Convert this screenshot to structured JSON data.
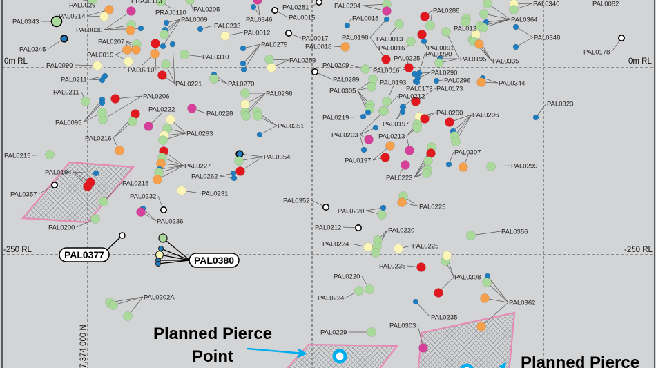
{
  "axes": {
    "rl_0_left": "0m RL",
    "rl_0_right": "0m RL",
    "rl_250_left": "-250 RL",
    "rl_250_right": "-250 RL",
    "northing": "7,374,000 N"
  },
  "callouts": {
    "planned_pierce_line1": "Planned Pierce",
    "planned_pierce_line2": "Point",
    "planned_pierce_right": "Planned Pierce",
    "highlight_hole_1": "PAL0377",
    "highlight_hole_2": "PAL0380"
  },
  "colors": {
    "background": "#d3d4d6",
    "green": "#a9d99b",
    "blue": "#1f7cbf",
    "red": "#e1191f",
    "orange": "#f7a04b",
    "yellow": "#fbf6b8",
    "magenta": "#d6409b",
    "open": "#ffffff",
    "target_outline": "#e68ab6",
    "pierce_point": "#00aeef"
  },
  "drill_hole_labels": [
    "PAL0029",
    "PRAJ0113",
    "PAL0214",
    "PAL0343",
    "PAL0030",
    "PAL0345",
    "PAL0207",
    "PAL0019",
    "PAL0090",
    "PAL0210",
    "PRAJ0110",
    "PAL0205",
    "PAL0009",
    "PAL0233",
    "PAL0012",
    "PAL0221",
    "PAL0310",
    "PAL0279",
    "PAL0283",
    "PAL0270",
    "PAL0211",
    "PAL0211",
    "PAL0206",
    "PAL0095",
    "PAL0222",
    "PAL0228",
    "PAL0216",
    "PAL0293",
    "PAL0298",
    "PAL0351",
    "PAL0215",
    "PAL0227",
    "PAL0354",
    "PAL0262",
    "PAL0194",
    "PAL0218",
    "PAL0357",
    "PAL0231",
    "PAL0232",
    "PAL0236",
    "PAL0200",
    "PAL0202A",
    "PAL0346",
    "PAL0281",
    "PAL0015",
    "PAL0017",
    "PAL0204",
    "PAL0018",
    "PAL0198",
    "PAL0013",
    "PAL0016",
    "PAL0288",
    "PAL0018",
    "PAL0091",
    "PAL0290",
    "PAL0225",
    "PAL0195",
    "PAL012",
    "PAL0364",
    "PAL0340",
    "PAL0082",
    "PAL0335",
    "PAL0348",
    "PAL0178",
    "PAL0209",
    "PAL0016",
    "PAL0289",
    "PAL0290",
    "PAL0296",
    "PAL0344",
    "PAL0305",
    "PAL0193",
    "PAL0173",
    "PAL0173",
    "PAL0212",
    "PAL0219",
    "PAL0197",
    "PAL0290",
    "PAL0296",
    "PAL0203",
    "PAL0213",
    "PAL0197",
    "PAL0223",
    "PAL0307",
    "PAL0323",
    "PAL0299",
    "PAL0352",
    "PAL0220",
    "PAL0225",
    "PAL0212",
    "PAL0220",
    "PAL0224",
    "PAL0225",
    "PAL0356",
    "PAL0235",
    "PAL0308",
    "PAL0220",
    "PAL0224",
    "PAL0235",
    "PAL0362",
    "PAL0303",
    "PAL0229"
  ]
}
